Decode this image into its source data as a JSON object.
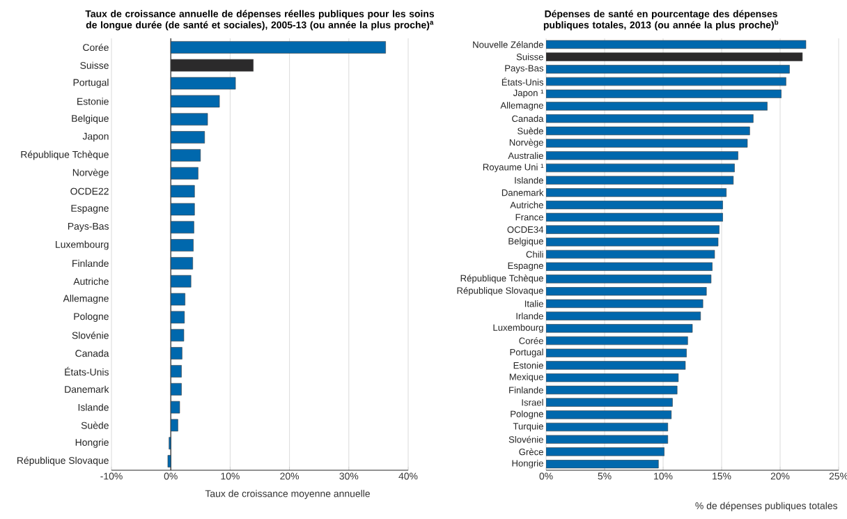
{
  "chart_data": [
    {
      "type": "bar",
      "orientation": "horizontal",
      "title": "Taux de croissance annuelle de dépenses réelles publiques pour les soins de longue durée (de santé et sociales),  2005-13 (ou année la plus proche)$^{a}$",
      "xlabel": "Taux de croissance moyenne annuelle",
      "categories": [
        "Corée",
        "Suisse",
        "Portugal",
        "Estonie",
        "Belgique",
        "Japon",
        "République Tchèque",
        "Norvège",
        "OCDE22",
        "Espagne",
        "Pays-Bas",
        "Luxembourg",
        "Finlande",
        "Autriche",
        "Allemagne",
        "Pologne",
        "Slovénie",
        "Canada",
        "États-Unis",
        "Danemark",
        "Islande",
        "Suède",
        "Hongrie",
        "République Slovaque"
      ],
      "values": [
        36.2,
        13.9,
        10.9,
        8.2,
        6.2,
        5.7,
        5.0,
        4.6,
        4.0,
        4.0,
        3.9,
        3.8,
        3.7,
        3.4,
        2.4,
        2.3,
        2.2,
        1.9,
        1.8,
        1.8,
        1.5,
        1.2,
        -0.3,
        -0.5
      ],
      "colors": [
        "#0068ad",
        "#2b2a2b",
        "#0068ad",
        "#0068ad",
        "#0068ad",
        "#0068ad",
        "#0068ad",
        "#0068ad",
        "#0068ad",
        "#0068ad",
        "#0068ad",
        "#0068ad",
        "#0068ad",
        "#0068ad",
        "#0068ad",
        "#0068ad",
        "#0068ad",
        "#0068ad",
        "#0068ad",
        "#0068ad",
        "#0068ad",
        "#0068ad",
        "#0068ad",
        "#0068ad"
      ],
      "xlim": [
        -10,
        40
      ],
      "xticks": [
        {
          "value": -10,
          "label": "-10%"
        },
        {
          "value": 0,
          "label": "0%"
        },
        {
          "value": 10,
          "label": "10%"
        },
        {
          "value": 20,
          "label": "20%"
        },
        {
          "value": 30,
          "label": "30%"
        },
        {
          "value": 40,
          "label": "40%"
        }
      ],
      "grid": "x"
    },
    {
      "type": "bar",
      "orientation": "horizontal",
      "title": "Dépenses de santé en pourcentage des dépenses publiques totales, 2013 (ou année la plus proche)$^{b}$",
      "xlabel": "% de dépenses publiques totales",
      "categories": [
        "Nouvelle Zélande",
        "Suisse",
        "Pays-Bas",
        "États-Unis",
        "Japon ¹",
        "Allemagne",
        "Canada",
        "Suède",
        "Norvège",
        "Australie",
        "Royaume Uni ¹",
        "Islande",
        "Danemark",
        "Autriche",
        "France",
        "OCDE34",
        "Belgique",
        "Chili",
        "Espagne",
        "République Tchèque",
        "République Slovaque",
        "Italie",
        "Irlande",
        "Luxembourg",
        "Corée",
        "Portugal",
        "Estonie",
        "Mexique",
        "Finlande",
        "Israel",
        "Pologne",
        "Turquie",
        "Slovénie",
        "Grèce",
        "Hongrie"
      ],
      "values": [
        22.2,
        21.9,
        20.8,
        20.5,
        20.1,
        18.9,
        17.7,
        17.4,
        17.2,
        16.4,
        16.1,
        16.0,
        15.4,
        15.1,
        15.1,
        14.8,
        14.7,
        14.4,
        14.2,
        14.1,
        13.7,
        13.4,
        13.2,
        12.5,
        12.1,
        12.0,
        11.9,
        11.3,
        11.2,
        10.8,
        10.7,
        10.4,
        10.4,
        10.1,
        9.6
      ],
      "colors": [
        "#0068ad",
        "#2b2a2b",
        "#0068ad",
        "#0068ad",
        "#0068ad",
        "#0068ad",
        "#0068ad",
        "#0068ad",
        "#0068ad",
        "#0068ad",
        "#0068ad",
        "#0068ad",
        "#0068ad",
        "#0068ad",
        "#0068ad",
        "#0068ad",
        "#0068ad",
        "#0068ad",
        "#0068ad",
        "#0068ad",
        "#0068ad",
        "#0068ad",
        "#0068ad",
        "#0068ad",
        "#0068ad",
        "#0068ad",
        "#0068ad",
        "#0068ad",
        "#0068ad",
        "#0068ad",
        "#0068ad",
        "#0068ad",
        "#0068ad",
        "#0068ad",
        "#0068ad"
      ],
      "xlim": [
        0,
        25
      ],
      "xticks": [
        {
          "value": 0,
          "label": "0%"
        },
        {
          "value": 5,
          "label": "5%"
        },
        {
          "value": 10,
          "label": "10%"
        },
        {
          "value": 15,
          "label": "15%"
        },
        {
          "value": 20,
          "label": "20%"
        },
        {
          "value": 25,
          "label": "25%"
        }
      ],
      "grid": "x"
    }
  ]
}
